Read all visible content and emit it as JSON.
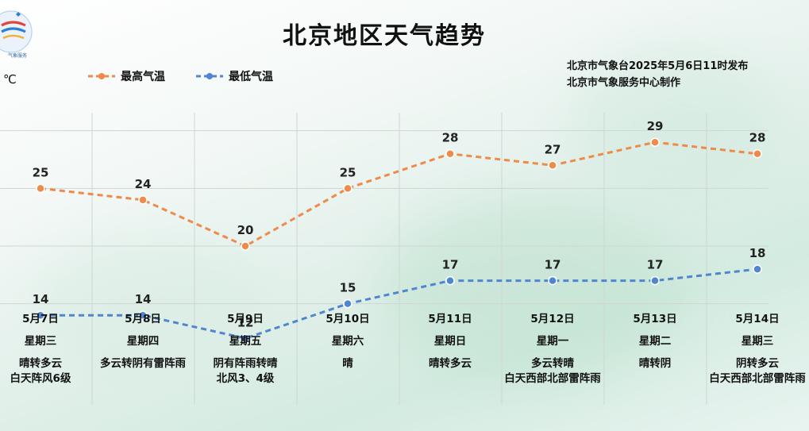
{
  "title": "北京地区天气趋势",
  "issuer": {
    "line1": "北京市气象台2025年5月6日11时发布",
    "line2": "北京市气象服务中心制作"
  },
  "unit": "℃",
  "legend": {
    "high": "最高气温",
    "low": "最低气温"
  },
  "colors": {
    "high": "#ee8a4a",
    "low": "#4f86cf",
    "grid": "#cfd6d3"
  },
  "days": [
    {
      "date": "5月7日",
      "weekday": "星期三",
      "weather": "晴转多云",
      "extra": "白天阵风6级"
    },
    {
      "date": "5月8日",
      "weekday": "星期四",
      "weather": "多云转阴有雷阵雨",
      "extra": ""
    },
    {
      "date": "5月9日",
      "weekday": "星期五",
      "weather": "阴有阵雨转晴",
      "extra": "北风3、4级"
    },
    {
      "date": "5月10日",
      "weekday": "星期六",
      "weather": "晴",
      "extra": ""
    },
    {
      "date": "5月11日",
      "weekday": "星期日",
      "weather": "晴转多云",
      "extra": ""
    },
    {
      "date": "5月12日",
      "weekday": "星期一",
      "weather": "多云转晴",
      "extra": "白天西部北部雷阵雨"
    },
    {
      "date": "5月13日",
      "weekday": "星期二",
      "weather": "晴转阴",
      "extra": ""
    },
    {
      "date": "5月14日",
      "weekday": "星期三",
      "weather": "阴转多云",
      "extra": "白天西部北部雷阵雨"
    }
  ],
  "chart_data": {
    "type": "line",
    "title": "北京地区天气趋势",
    "ylabel": "℃",
    "categories": [
      "5月7日",
      "5月8日",
      "5月9日",
      "5月10日",
      "5月11日",
      "5月12日",
      "5月13日",
      "5月14日"
    ],
    "ylim": [
      5,
      35
    ],
    "series": [
      {
        "name": "最高气温",
        "values": [
          25,
          24,
          20,
          25,
          28,
          27,
          29,
          28
        ]
      },
      {
        "name": "最低气温",
        "values": [
          14,
          14,
          12,
          15,
          17,
          17,
          17,
          18
        ]
      }
    ],
    "grid": true,
    "legend": "top-left"
  }
}
